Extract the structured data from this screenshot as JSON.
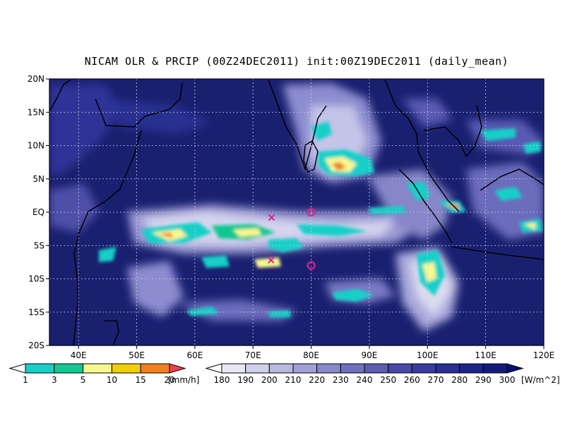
{
  "title": "NICAM OLR & PRCIP (00Z24DEC2011) init:00Z19DEC2011 (daily_mean)",
  "map": {
    "lon_range": [
      35,
      120
    ],
    "lat_range": [
      -20,
      20
    ],
    "lat_labels": [
      "20N",
      "15N",
      "10N",
      "5N",
      "EQ",
      "5S",
      "10S",
      "15S",
      "20S"
    ],
    "lon_labels": [
      "40E",
      "50E",
      "60E",
      "70E",
      "80E",
      "90E",
      "100E",
      "110E",
      "120E"
    ],
    "background_color": "#1a2070",
    "gridlines": "dotted",
    "markers": [
      {
        "type": "x",
        "lon": 73.2,
        "lat": -0.8,
        "color": "#e0208a"
      },
      {
        "type": "x",
        "lon": 73.1,
        "lat": -7.2,
        "color": "#e0208a"
      },
      {
        "type": "circle",
        "lon": 80,
        "lat": 0,
        "color": "#e0208a"
      },
      {
        "type": "circle",
        "lon": 80,
        "lat": -8,
        "color": "#e0208a"
      }
    ]
  },
  "precip_colorbar": {
    "labels": [
      "1",
      "3",
      "5",
      "10",
      "15",
      "20"
    ],
    "unit": "[mm/h]",
    "colors": [
      "#ffffff",
      "#18d0c8",
      "#10c890",
      "#f8f890",
      "#f0d000",
      "#f08020",
      "#f04050"
    ]
  },
  "olr_colorbar": {
    "labels": [
      "180",
      "190",
      "200",
      "210",
      "220",
      "230",
      "240",
      "250",
      "260",
      "270",
      "280",
      "290",
      "300"
    ],
    "unit": "[W/m^2]",
    "colors": [
      "#ffffff",
      "#e8e8f4",
      "#d0d0ea",
      "#b8b8e0",
      "#a0a0d6",
      "#8888cc",
      "#7070c0",
      "#5c5cb4",
      "#4848a8",
      "#383ca0",
      "#2a2e94",
      "#1e2488",
      "#141a7c",
      "#0c1070"
    ]
  }
}
